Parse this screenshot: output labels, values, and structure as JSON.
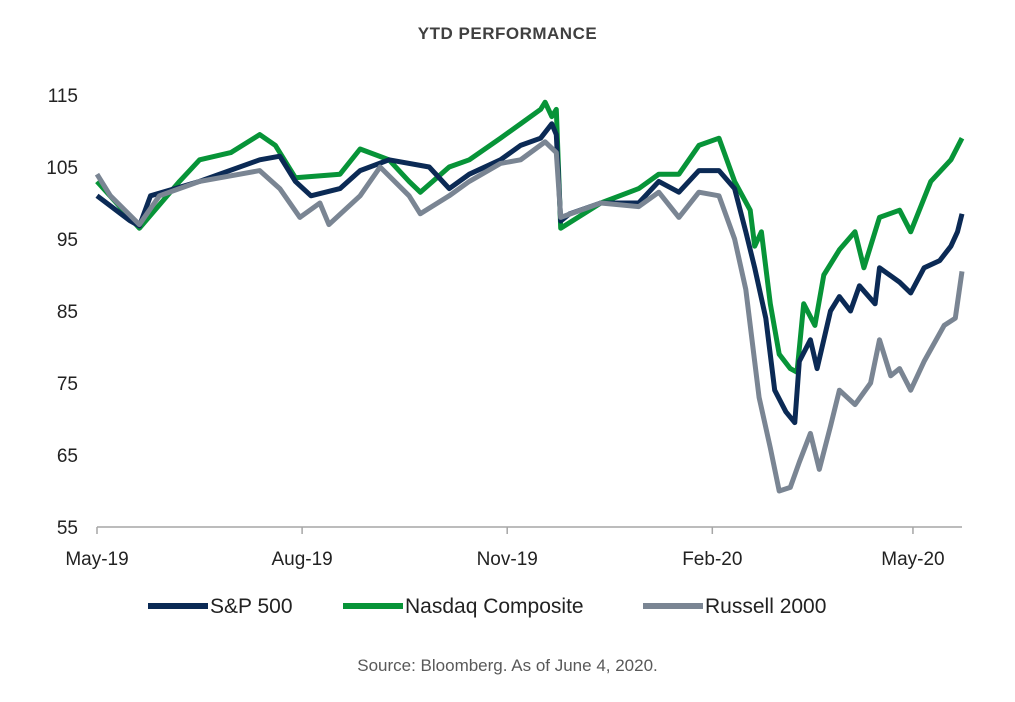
{
  "chart_data": {
    "type": "line",
    "title": "YTD PERFORMANCE",
    "source": "Source: Bloomberg. As of June 4, 2020.",
    "xlabel": "",
    "ylabel": "",
    "ylim": [
      55,
      115
    ],
    "yticks": [
      "55",
      "65",
      "75",
      "85",
      "95",
      "105",
      "115"
    ],
    "xticks": [
      {
        "date": "2019-05-01",
        "label": "May-19"
      },
      {
        "date": "2019-08-01",
        "label": "Aug-19"
      },
      {
        "date": "2019-11-01",
        "label": "Nov-19"
      },
      {
        "date": "2020-02-01",
        "label": "Feb-20"
      },
      {
        "date": "2020-05-01",
        "label": "May-20"
      }
    ],
    "xlim": [
      "2019-05-01",
      "2020-05-23"
    ],
    "grid": false,
    "legend_position": "bottom",
    "series": [
      {
        "name": "Nasdaq Composite",
        "color": "#079438",
        "points": [
          [
            "2019-05-01",
            103
          ],
          [
            "2019-05-20",
            96.5
          ],
          [
            "2019-06-07",
            103
          ],
          [
            "2019-06-16",
            106
          ],
          [
            "2019-06-30",
            107
          ],
          [
            "2019-07-13",
            109.5
          ],
          [
            "2019-07-20",
            108
          ],
          [
            "2019-07-29",
            103.5
          ],
          [
            "2019-08-18",
            104
          ],
          [
            "2019-08-27",
            107.5
          ],
          [
            "2019-09-09",
            106
          ],
          [
            "2019-09-18",
            103
          ],
          [
            "2019-09-23",
            101.5
          ],
          [
            "2019-10-06",
            105
          ],
          [
            "2019-10-15",
            106
          ],
          [
            "2019-10-29",
            109
          ],
          [
            "2019-11-07",
            111
          ],
          [
            "2019-11-16",
            113
          ],
          [
            "2019-11-18",
            114
          ],
          [
            "2019-11-21",
            112
          ],
          [
            "2019-11-23",
            113
          ],
          [
            "2019-11-25",
            96.5
          ],
          [
            "2019-12-13",
            100
          ],
          [
            "2019-12-30",
            102
          ],
          [
            "2020-01-08",
            104
          ],
          [
            "2020-01-17",
            104
          ],
          [
            "2020-01-26",
            108
          ],
          [
            "2020-02-04",
            109
          ],
          [
            "2020-02-11",
            103
          ],
          [
            "2020-02-18",
            99
          ],
          [
            "2020-02-20",
            94
          ],
          [
            "2020-02-23",
            96
          ],
          [
            "2020-02-27",
            86
          ],
          [
            "2020-03-02",
            79
          ],
          [
            "2020-03-07",
            77
          ],
          [
            "2020-03-10",
            76.5
          ],
          [
            "2020-03-13",
            86
          ],
          [
            "2020-03-18",
            83
          ],
          [
            "2020-03-22",
            90
          ],
          [
            "2020-03-29",
            93.5
          ],
          [
            "2020-04-05",
            96
          ],
          [
            "2020-04-09",
            91
          ],
          [
            "2020-04-16",
            98
          ],
          [
            "2020-04-25",
            99
          ],
          [
            "2020-04-30",
            96
          ],
          [
            "2020-05-09",
            103
          ],
          [
            "2020-05-18",
            106
          ],
          [
            "2020-05-23",
            109
          ]
        ]
      },
      {
        "name": "S&P 500",
        "color": "#0b2a55",
        "points": [
          [
            "2019-05-01",
            101
          ],
          [
            "2019-05-16",
            97.5
          ],
          [
            "2019-05-20",
            96.8
          ],
          [
            "2019-05-25",
            101
          ],
          [
            "2019-06-16",
            103
          ],
          [
            "2019-07-13",
            106
          ],
          [
            "2019-07-22",
            106.5
          ],
          [
            "2019-07-29",
            103
          ],
          [
            "2019-08-05",
            101
          ],
          [
            "2019-08-18",
            102
          ],
          [
            "2019-08-27",
            104.5
          ],
          [
            "2019-09-09",
            106
          ],
          [
            "2019-09-27",
            105
          ],
          [
            "2019-10-06",
            102
          ],
          [
            "2019-10-15",
            104
          ],
          [
            "2019-10-29",
            106
          ],
          [
            "2019-11-07",
            108
          ],
          [
            "2019-11-16",
            109
          ],
          [
            "2019-11-21",
            111
          ],
          [
            "2019-11-23",
            109.5
          ],
          [
            "2019-11-25",
            97.5
          ],
          [
            "2019-11-29",
            98.5
          ],
          [
            "2019-12-13",
            100
          ],
          [
            "2019-12-30",
            100
          ],
          [
            "2020-01-08",
            103
          ],
          [
            "2020-01-17",
            101.5
          ],
          [
            "2020-01-26",
            104.5
          ],
          [
            "2020-02-04",
            104.5
          ],
          [
            "2020-02-11",
            102
          ],
          [
            "2020-02-16",
            96
          ],
          [
            "2020-02-20",
            91
          ],
          [
            "2020-02-25",
            84
          ],
          [
            "2020-02-29",
            74
          ],
          [
            "2020-03-05",
            71
          ],
          [
            "2020-03-09",
            69.5
          ],
          [
            "2020-03-11",
            78
          ],
          [
            "2020-03-16",
            81
          ],
          [
            "2020-03-19",
            77
          ],
          [
            "2020-03-25",
            85
          ],
          [
            "2020-03-29",
            87
          ],
          [
            "2020-04-03",
            85
          ],
          [
            "2020-04-07",
            88.5
          ],
          [
            "2020-04-14",
            86
          ],
          [
            "2020-04-16",
            91
          ],
          [
            "2020-04-25",
            89
          ],
          [
            "2020-04-30",
            87.5
          ],
          [
            "2020-05-06",
            91
          ],
          [
            "2020-05-13",
            92
          ],
          [
            "2020-05-18",
            94
          ],
          [
            "2020-05-21",
            96
          ],
          [
            "2020-05-23",
            98.5
          ]
        ]
      },
      {
        "name": "Russell 2000",
        "color": "#7a8593",
        "points": [
          [
            "2019-05-01",
            104
          ],
          [
            "2019-05-07",
            101
          ],
          [
            "2019-05-20",
            97
          ],
          [
            "2019-05-29",
            101
          ],
          [
            "2019-06-16",
            103
          ],
          [
            "2019-07-13",
            104.5
          ],
          [
            "2019-07-22",
            102
          ],
          [
            "2019-07-31",
            98
          ],
          [
            "2019-08-09",
            100
          ],
          [
            "2019-08-13",
            97
          ],
          [
            "2019-08-27",
            101
          ],
          [
            "2019-09-05",
            105
          ],
          [
            "2019-09-18",
            101
          ],
          [
            "2019-09-23",
            98.5
          ],
          [
            "2019-10-06",
            101
          ],
          [
            "2019-10-15",
            103
          ],
          [
            "2019-10-29",
            105.5
          ],
          [
            "2019-11-07",
            106
          ],
          [
            "2019-11-18",
            108.5
          ],
          [
            "2019-11-23",
            107
          ],
          [
            "2019-11-25",
            98
          ],
          [
            "2019-12-13",
            100
          ],
          [
            "2019-12-30",
            99.5
          ],
          [
            "2020-01-08",
            101.5
          ],
          [
            "2020-01-17",
            98
          ],
          [
            "2020-01-26",
            101.5
          ],
          [
            "2020-02-04",
            101
          ],
          [
            "2020-02-11",
            95
          ],
          [
            "2020-02-16",
            88
          ],
          [
            "2020-02-22",
            73
          ],
          [
            "2020-02-27",
            66
          ],
          [
            "2020-03-02",
            60
          ],
          [
            "2020-03-07",
            60.5
          ],
          [
            "2020-03-11",
            64
          ],
          [
            "2020-03-16",
            68
          ],
          [
            "2020-03-20",
            63
          ],
          [
            "2020-03-25",
            69
          ],
          [
            "2020-03-29",
            74
          ],
          [
            "2020-04-05",
            72
          ],
          [
            "2020-04-12",
            75
          ],
          [
            "2020-04-16",
            81
          ],
          [
            "2020-04-21",
            76
          ],
          [
            "2020-04-25",
            77
          ],
          [
            "2020-04-30",
            74
          ],
          [
            "2020-05-06",
            78
          ],
          [
            "2020-05-15",
            83
          ],
          [
            "2020-05-20",
            84
          ],
          [
            "2020-05-23",
            90.5
          ]
        ]
      }
    ]
  }
}
